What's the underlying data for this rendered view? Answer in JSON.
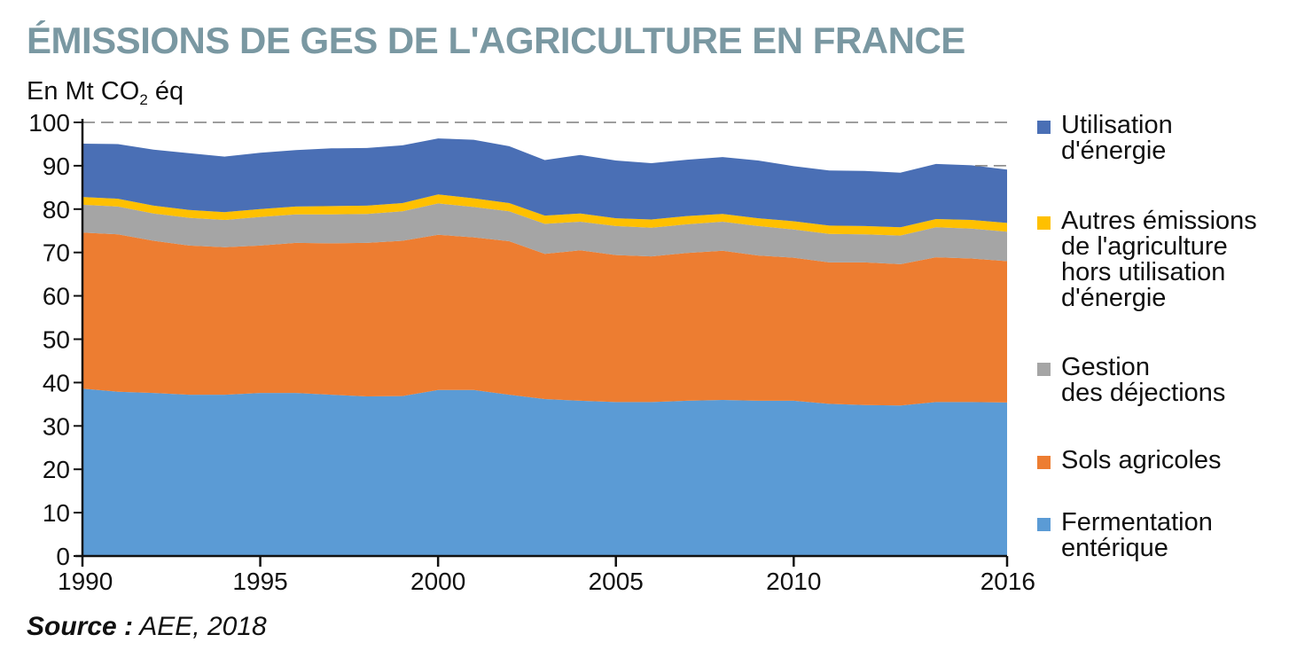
{
  "title": "ÉMISSIONS DE GES DE L'AGRICULTURE EN FRANCE",
  "unit": {
    "prefix": "En Mt CO",
    "subscript": "2",
    "suffix": " éq"
  },
  "source": {
    "label": "Source :",
    "value": " AEE, 2018"
  },
  "chart_data": {
    "type": "area",
    "stacked": true,
    "title": "ÉMISSIONS DE GES DE L'AGRICULTURE EN FRANCE",
    "ylabel": "En Mt CO2 éq",
    "xlabel": "",
    "xlim": [
      1990,
      2016
    ],
    "ylim": [
      0,
      100
    ],
    "x_ticks": [
      1990,
      1995,
      2000,
      2005,
      2010,
      2016
    ],
    "y_ticks": [
      0,
      10,
      20,
      30,
      40,
      50,
      60,
      70,
      80,
      90,
      100
    ],
    "reference_lines": [
      100,
      90
    ],
    "legend_position": "right",
    "x": [
      1990,
      1991,
      1992,
      1993,
      1994,
      1995,
      1996,
      1997,
      1998,
      1999,
      2000,
      2001,
      2002,
      2003,
      2004,
      2005,
      2006,
      2007,
      2008,
      2009,
      2010,
      2011,
      2012,
      2013,
      2014,
      2015,
      2016
    ],
    "series": [
      {
        "name": "Fermentation\nentérique",
        "color": "#5b9bd5",
        "values": [
          38.6,
          37.9,
          37.6,
          37.2,
          37.2,
          37.6,
          37.6,
          37.2,
          36.8,
          36.9,
          38.3,
          38.3,
          37.2,
          36.2,
          35.8,
          35.5,
          35.5,
          35.8,
          36.0,
          35.8,
          35.8,
          35.1,
          34.8,
          34.7,
          35.5,
          35.5,
          35.4
        ]
      },
      {
        "name": "Sols agricoles",
        "color": "#ed7d31",
        "values": [
          36.0,
          36.3,
          35.1,
          34.4,
          34.0,
          34.0,
          34.6,
          34.9,
          35.4,
          35.8,
          35.8,
          35.2,
          35.4,
          33.5,
          34.7,
          33.9,
          33.6,
          34.1,
          34.4,
          33.5,
          33.0,
          32.6,
          32.9,
          32.6,
          33.4,
          33.1,
          32.6
        ]
      },
      {
        "name": "Gestion\ndes déjections",
        "color": "#a5a5a5",
        "values": [
          6.4,
          6.4,
          6.3,
          6.4,
          6.3,
          6.6,
          6.6,
          6.7,
          6.7,
          6.8,
          7.2,
          7.0,
          6.9,
          6.9,
          6.6,
          6.7,
          6.6,
          6.6,
          6.7,
          6.8,
          6.5,
          6.6,
          6.5,
          6.6,
          6.9,
          6.9,
          6.8
        ]
      },
      {
        "name": "Autres émissions\nde l'agriculture\nhors utilisation\nd'énergie",
        "color": "#ffc000",
        "values": [
          1.8,
          1.8,
          1.8,
          1.8,
          1.8,
          1.8,
          1.8,
          1.9,
          1.9,
          1.9,
          2.1,
          2.0,
          1.9,
          1.9,
          1.9,
          1.8,
          1.9,
          1.9,
          1.8,
          1.8,
          1.9,
          1.9,
          1.9,
          1.9,
          1.9,
          2.0,
          2.0
        ]
      },
      {
        "name": "Utilisation\nd'énergie",
        "color": "#4a6fb5",
        "values": [
          12.3,
          12.6,
          12.9,
          13.1,
          12.8,
          13.0,
          13.0,
          13.3,
          13.3,
          13.3,
          12.9,
          13.5,
          13.1,
          12.8,
          13.5,
          13.3,
          13.0,
          13.0,
          13.1,
          13.3,
          12.7,
          12.7,
          12.7,
          12.6,
          12.7,
          12.6,
          12.3
        ]
      }
    ]
  }
}
